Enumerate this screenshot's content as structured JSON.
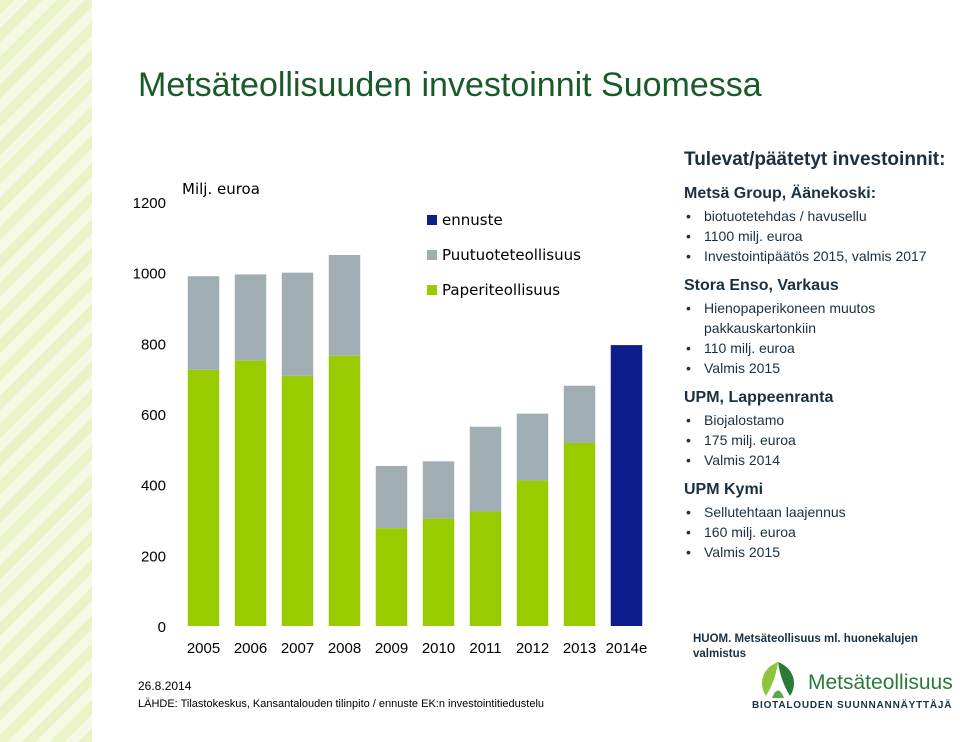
{
  "title": "Metsäteollisuuden investoinnit Suomessa",
  "chart_data": {
    "type": "bar",
    "stacked": true,
    "unit_label": "Milj. euroa",
    "categories": [
      "2005",
      "2006",
      "2007",
      "2008",
      "2009",
      "2010",
      "2011",
      "2012",
      "2013",
      "2014e"
    ],
    "series": [
      {
        "name": "Paperiteollisuus",
        "color": "#99cc00",
        "values": [
          725,
          752,
          708,
          765,
          277,
          304,
          324,
          412,
          518,
          null
        ]
      },
      {
        "name": "Puutuoteteollisuus",
        "color": "#a0aeb3",
        "values": [
          265,
          243,
          292,
          285,
          176,
          162,
          240,
          189,
          162,
          null
        ]
      },
      {
        "name": "ennuste",
        "color": "#0d1e8c",
        "values": [
          null,
          null,
          null,
          null,
          null,
          null,
          null,
          null,
          null,
          795
        ]
      }
    ],
    "legend_order": [
      "ennuste",
      "Puutuoteteollisuus",
      "Paperiteollisuus"
    ],
    "legend_position": "top-right",
    "yticks": [
      "0",
      "200",
      "400",
      "600",
      "800",
      "1000",
      "1200"
    ],
    "ylim": [
      0,
      1200
    ],
    "grid": false
  },
  "side": {
    "heading": "Tulevat/päätetyt investoinnit:",
    "projects": [
      {
        "name": "Metsä Group, Äänekoski:",
        "bullets": [
          "biotuotetehdas / havusellu",
          "1100 milj. euroa",
          "Investointipäätös 2015, valmis 2017"
        ]
      },
      {
        "name": "Stora Enso, Varkaus",
        "bullets": [
          "Hienopaperikoneen muutos pakkauskartonkiin",
          "110 milj. euroa",
          "Valmis 2015"
        ]
      },
      {
        "name": "UPM, Lappeenranta",
        "bullets": [
          "Biojalostamo",
          "175 milj. euroa",
          "Valmis 2014"
        ]
      },
      {
        "name": "UPM Kymi",
        "bullets": [
          "Sellutehtaan laajennus",
          "160 milj. euroa",
          "Valmis 2015"
        ]
      }
    ],
    "note": "HUOM. Metsäteollisuus ml. huonekalujen valmistus"
  },
  "logo": {
    "name": "Metsäteollisuus",
    "subtitle": "BIOTALOUDEN SUUNNANNÄYTTÄJÄ"
  },
  "footer": {
    "date": "26.8.2014",
    "source": "LÄHDE: Tilastokeskus, Kansantalouden tilinpito / ennuste EK:n investointitiedustelu"
  }
}
